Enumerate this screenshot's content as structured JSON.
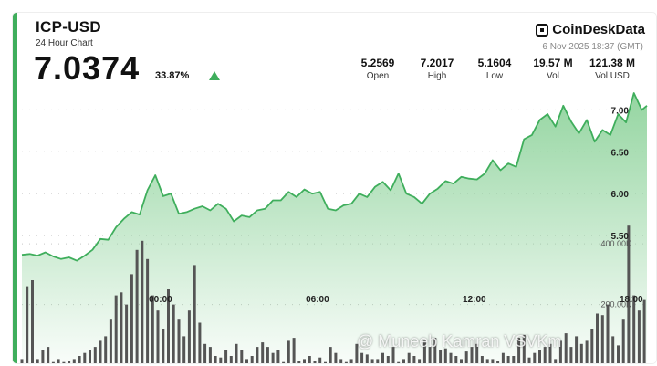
{
  "header": {
    "symbol": "ICP-USD",
    "subtitle": "24 Hour Chart",
    "price": "7.0374",
    "change_pct": "33.87%",
    "brand": "CoinDeskData",
    "timestamp": "6 Nov 2025 18:37 (GMT)"
  },
  "stats": [
    {
      "value": "5.2569",
      "label": "Open"
    },
    {
      "value": "7.2017",
      "label": "High"
    },
    {
      "value": "5.1604",
      "label": "Low"
    },
    {
      "value": "19.57 M",
      "label": "Vol"
    },
    {
      "value": "121.38 M",
      "label": "Vol USD"
    }
  ],
  "watermark": "@ Muneeb Kamran VSVKm",
  "colors": {
    "accent": "#3fae5c",
    "fill": "#8fd39c",
    "bar": "#555555"
  },
  "chart_data": [
    {
      "type": "area",
      "x_tick_labels": [
        "00:00",
        "06:00",
        "12:00",
        "18:00"
      ],
      "x_tick_hours": [
        0,
        6,
        12,
        18
      ],
      "y_tick_labels": [
        "5.50",
        "6.00",
        "6.50",
        "7.00"
      ],
      "y_ticks": [
        5.5,
        6.0,
        6.5,
        7.0
      ],
      "ylim": [
        5.0,
        7.2
      ],
      "xlim": [
        -5.3,
        18.6
      ],
      "grid": true,
      "x": [
        -5.3,
        -5.0,
        -4.7,
        -4.4,
        -4.1,
        -3.8,
        -3.5,
        -3.2,
        -2.9,
        -2.6,
        -2.3,
        -2.0,
        -1.7,
        -1.4,
        -1.1,
        -0.8,
        -0.5,
        -0.2,
        0.1,
        0.4,
        0.7,
        1.0,
        1.3,
        1.6,
        1.9,
        2.2,
        2.5,
        2.8,
        3.1,
        3.4,
        3.7,
        4.0,
        4.3,
        4.6,
        4.9,
        5.2,
        5.5,
        5.8,
        6.1,
        6.4,
        6.7,
        7.0,
        7.3,
        7.6,
        7.9,
        8.2,
        8.5,
        8.8,
        9.1,
        9.4,
        9.7,
        10.0,
        10.3,
        10.6,
        10.9,
        11.2,
        11.5,
        11.8,
        12.1,
        12.4,
        12.7,
        13.0,
        13.3,
        13.6,
        13.9,
        14.2,
        14.5,
        14.8,
        15.1,
        15.4,
        15.7,
        16.0,
        16.3,
        16.6,
        16.9,
        17.2,
        17.5,
        17.8,
        18.1,
        18.4,
        18.6
      ],
      "y": [
        5.27,
        5.28,
        5.26,
        5.3,
        5.25,
        5.22,
        5.24,
        5.2,
        5.26,
        5.33,
        5.46,
        5.45,
        5.6,
        5.7,
        5.78,
        5.75,
        6.04,
        6.22,
        5.97,
        6.0,
        5.76,
        5.78,
        5.82,
        5.85,
        5.8,
        5.88,
        5.82,
        5.67,
        5.74,
        5.72,
        5.8,
        5.82,
        5.92,
        5.92,
        6.02,
        5.96,
        6.05,
        6.0,
        6.02,
        5.82,
        5.8,
        5.86,
        5.88,
        6.0,
        5.96,
        6.08,
        6.14,
        6.04,
        6.24,
        6.0,
        5.96,
        5.88,
        6.0,
        6.06,
        6.15,
        6.12,
        6.2,
        6.18,
        6.17,
        6.24,
        6.4,
        6.28,
        6.36,
        6.32,
        6.65,
        6.7,
        6.88,
        6.95,
        6.8,
        7.05,
        6.86,
        6.72,
        6.88,
        6.62,
        6.76,
        6.7,
        6.95,
        6.85,
        7.2,
        7.0,
        7.05
      ]
    },
    {
      "type": "bar",
      "series_role": "volume",
      "y_tick_labels": [
        "200.00K",
        "400.00K"
      ],
      "y_ticks": [
        200000,
        400000
      ],
      "ylim": [
        0,
        560000
      ],
      "x_start": -5.3,
      "x_step": 0.2,
      "values": [
        20,
        260,
        280,
        20,
        50,
        60,
        10,
        20,
        10,
        15,
        20,
        30,
        40,
        50,
        60,
        80,
        95,
        150,
        230,
        240,
        200,
        300,
        380,
        410,
        350,
        230,
        180,
        120,
        250,
        200,
        150,
        95,
        180,
        330,
        140,
        70,
        60,
        30,
        25,
        50,
        30,
        70,
        50,
        20,
        30,
        60,
        75,
        60,
        40,
        50,
        10,
        80,
        90,
        15,
        20,
        30,
        15,
        25,
        10,
        60,
        40,
        20,
        10,
        20,
        70,
        40,
        35,
        20,
        20,
        40,
        30,
        60,
        10,
        20,
        40,
        30,
        20,
        80,
        60,
        90,
        50,
        55,
        40,
        30,
        20,
        45,
        60,
        70,
        30,
        20,
        20,
        15,
        40,
        30,
        30,
        90,
        100,
        25,
        40,
        50,
        60,
        70,
        20,
        80,
        105,
        60,
        95,
        70,
        80,
        120,
        170,
        165,
        200,
        95,
        65,
        150,
        460,
        230,
        180,
        215,
        120,
        100,
        250,
        200,
        90,
        160,
        140,
        80,
        150,
        220,
        165,
        160,
        230,
        180
      ]
    }
  ]
}
